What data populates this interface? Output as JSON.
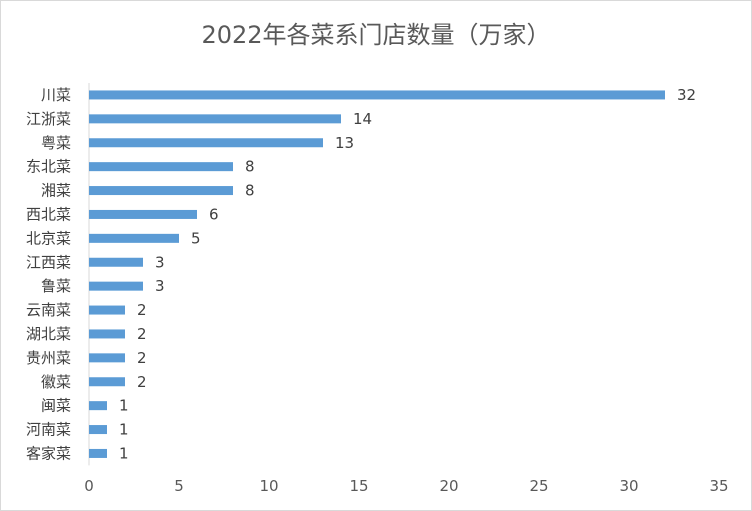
{
  "chart_data": {
    "type": "bar",
    "orientation": "horizontal",
    "title": "2022年各菜系门店数量（万家）",
    "xlabel": "",
    "ylabel": "",
    "categories": [
      "川菜",
      "江浙菜",
      "粤菜",
      "东北菜",
      "湘菜",
      "西北菜",
      "北京菜",
      "江西菜",
      "鲁菜",
      "云南菜",
      "湖北菜",
      "贵州菜",
      "徽菜",
      "闽菜",
      "河南菜",
      "客家菜"
    ],
    "values": [
      32,
      14,
      13,
      8,
      8,
      6,
      5,
      3,
      3,
      2,
      2,
      2,
      2,
      1,
      1,
      1
    ],
    "xlim": [
      0,
      35
    ],
    "xticks": [
      0,
      5,
      10,
      15,
      20,
      25,
      30,
      35
    ],
    "grid": false,
    "legend": "none",
    "bar_color": "#5b9bd5",
    "data_labels": true
  }
}
